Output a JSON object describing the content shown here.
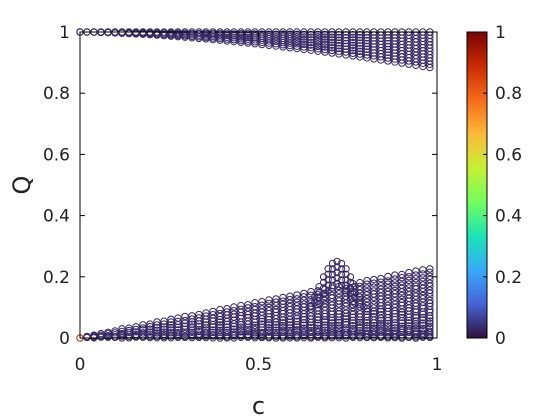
{
  "chart_data": {
    "type": "scatter",
    "title": "",
    "xlabel": "c",
    "ylabel": "Q",
    "xlim": [
      0,
      1
    ],
    "ylim": [
      0,
      1
    ],
    "x_ticks": [
      {
        "value": 0,
        "label": "0"
      },
      {
        "value": 0.5,
        "label": "0.5"
      },
      {
        "value": 1,
        "label": "1"
      }
    ],
    "y_ticks": [
      {
        "value": 0,
        "label": "0"
      },
      {
        "value": 0.2,
        "label": "0.2"
      },
      {
        "value": 0.4,
        "label": "0.4"
      },
      {
        "value": 0.6,
        "label": "0.6"
      },
      {
        "value": 0.8,
        "label": "0.8"
      },
      {
        "value": 1,
        "label": "1"
      }
    ],
    "grid": false,
    "marker": "open-circle",
    "colormap": {
      "name": "turbo",
      "range": [
        0,
        1
      ],
      "ticks": [
        {
          "value": 0,
          "label": "0"
        },
        {
          "value": 0.2,
          "label": "0.2"
        },
        {
          "value": 0.4,
          "label": "0.4"
        },
        {
          "value": 0.6,
          "label": "0.6"
        },
        {
          "value": 0.8,
          "label": "0.8"
        },
        {
          "value": 1,
          "label": "1"
        }
      ],
      "stops": [
        "#30123b",
        "#4662d7",
        "#36aaf9",
        "#1ae4b6",
        "#72fe5e",
        "#c7ef34",
        "#faba39",
        "#f66b19",
        "#ca2a04",
        "#7a0403"
      ]
    },
    "point_color_value": 0.03,
    "bands": [
      {
        "region": "upper",
        "x_range": [
          0,
          0.98
        ],
        "q_at_c0": 1.0,
        "q_max_at_c1": 1.0,
        "q_min_at_c1": 0.88
      },
      {
        "region": "lower",
        "x_range": [
          0,
          0.98
        ],
        "q_at_c0": 0.0,
        "q_min_at_c1": 0.0,
        "q_max_at_c1": 0.25
      },
      {
        "region": "bump",
        "x_center": 0.72,
        "x_halfwidth": 0.1,
        "q_peak": 0.25
      }
    ],
    "highlighted_point": {
      "x": 0,
      "y": 0,
      "color": "#ca2a04"
    }
  }
}
